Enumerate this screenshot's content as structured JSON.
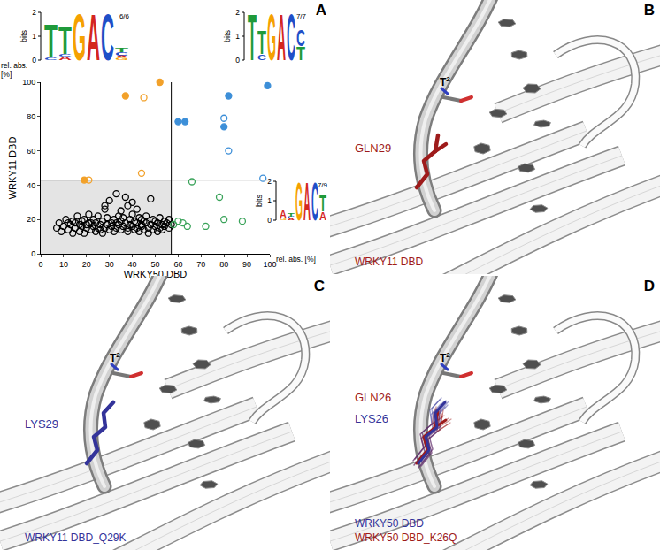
{
  "chart_data": {
    "type": "scatter",
    "x_label": "WRKY50 DBD",
    "y_label": "WRKY11 DBD",
    "x_unit": "rel. abs. [%]",
    "y_unit": "rel. abs. [%]",
    "xlim": [
      0,
      100
    ],
    "ylim": [
      0,
      100
    ],
    "xticks": [
      0,
      10,
      20,
      30,
      40,
      50,
      60,
      70,
      80,
      90,
      100
    ],
    "yticks": [
      0,
      20,
      40,
      60,
      80,
      100
    ],
    "grid": false,
    "cutoffs": {
      "x": 57,
      "y": 43
    },
    "series": [
      {
        "color": "#000000",
        "marker": "circle-open",
        "x": [
          7,
          8,
          9,
          10,
          11,
          12,
          13,
          14,
          14,
          15,
          16,
          17,
          17,
          18,
          19,
          19,
          20,
          21,
          21,
          22,
          23,
          23,
          24,
          24,
          25,
          25,
          26,
          27,
          27,
          28,
          28,
          29,
          29,
          30,
          30,
          31,
          31,
          32,
          32,
          33,
          33,
          34,
          34,
          35,
          35,
          36,
          36,
          37,
          37,
          38,
          38,
          38,
          39,
          39,
          40,
          40,
          41,
          41,
          42,
          42,
          43,
          43,
          44,
          44,
          45,
          45,
          46,
          46,
          47,
          47,
          48,
          48,
          49,
          49,
          50,
          50,
          51,
          51,
          52,
          52,
          53,
          53,
          54,
          54,
          55,
          56,
          56,
          57,
          20,
          26,
          18,
          15,
          35,
          28,
          42,
          12,
          22,
          33,
          44,
          40
        ],
        "y": [
          15,
          18,
          13,
          16,
          20,
          14,
          17,
          12,
          19,
          15,
          22,
          13,
          17,
          16,
          20,
          12,
          15,
          18,
          23,
          14,
          16,
          20,
          13,
          18,
          15,
          22,
          17,
          12,
          19,
          15,
          28,
          17,
          21,
          14,
          31,
          18,
          16,
          20,
          13,
          15,
          35,
          17,
          22,
          19,
          14,
          16,
          21,
          18,
          33,
          15,
          28,
          13,
          20,
          17,
          16,
          23,
          14,
          19,
          18,
          15,
          21,
          13,
          17,
          16,
          19,
          14,
          22,
          18,
          15,
          12,
          32,
          17,
          20,
          14,
          16,
          19,
          18,
          13,
          15,
          21,
          17,
          14,
          19,
          16,
          18,
          15,
          20,
          17,
          17,
          14,
          19,
          18,
          25,
          26,
          26,
          18,
          18,
          18,
          20,
          30
        ]
      },
      {
        "color": "#f2a12a",
        "marker": "circle",
        "x": [
          19,
          37,
          52
        ],
        "y": [
          43,
          92,
          100
        ]
      },
      {
        "color": "#f2a12a",
        "marker": "circle-open",
        "x": [
          21,
          45,
          44
        ],
        "y": [
          43,
          91,
          47
        ]
      },
      {
        "color": "#3d8fd8",
        "marker": "circle",
        "x": [
          60,
          63,
          80,
          82,
          99
        ],
        "y": [
          77,
          77,
          74,
          92,
          98
        ]
      },
      {
        "color": "#3d8fd8",
        "marker": "circle-open",
        "x": [
          80,
          82,
          97
        ],
        "y": [
          79,
          60,
          44
        ]
      },
      {
        "color": "#3aa35a",
        "marker": "circle-open",
        "x": [
          58,
          60,
          62,
          64,
          66,
          72,
          78,
          80,
          88
        ],
        "y": [
          17,
          19,
          18,
          16,
          42,
          16,
          33,
          20,
          19
        ]
      }
    ]
  },
  "logos": [
    {
      "count_label": "6/6",
      "y_label": "bits",
      "ylim": [
        0,
        2
      ],
      "yticks": [
        0,
        1,
        2
      ],
      "columns": [
        [
          {
            "letter": "C",
            "bits": 0.1
          },
          {
            "letter": "T",
            "bits": 1.45
          }
        ],
        [
          {
            "letter": "A",
            "bits": 0.15
          },
          {
            "letter": "C",
            "bits": 0.1
          },
          {
            "letter": "T",
            "bits": 1.2
          }
        ],
        [
          {
            "letter": "G",
            "bits": 2
          }
        ],
        [
          {
            "letter": "A",
            "bits": 2
          }
        ],
        [
          {
            "letter": "C",
            "bits": 2
          }
        ],
        [
          {
            "letter": "G",
            "bits": 0.1
          },
          {
            "letter": "A",
            "bits": 0.1
          },
          {
            "letter": "C",
            "bits": 0.15
          },
          {
            "letter": "T",
            "bits": 0.2
          }
        ]
      ]
    },
    {
      "count_label": "7/7",
      "y_label": "bits",
      "ylim": [
        0,
        2
      ],
      "yticks": [
        0,
        1,
        2
      ],
      "columns": [
        [
          {
            "letter": "T",
            "bits": 2
          }
        ],
        [
          {
            "letter": "C",
            "bits": 0.25
          },
          {
            "letter": "T",
            "bits": 1.0
          }
        ],
        [
          {
            "letter": "G",
            "bits": 2
          }
        ],
        [
          {
            "letter": "A",
            "bits": 2
          }
        ],
        [
          {
            "letter": "C",
            "bits": 2
          }
        ],
        [
          {
            "letter": "T",
            "bits": 0.6
          },
          {
            "letter": "C",
            "bits": 0.7
          }
        ]
      ]
    },
    {
      "count_label": "7/9",
      "y_label": "bits",
      "ylim": [
        0,
        2
      ],
      "yticks": [
        0,
        1,
        2
      ],
      "columns": [
        [
          {
            "letter": "G",
            "bits": 0.1
          },
          {
            "letter": "A",
            "bits": 0.45
          }
        ],
        [
          {
            "letter": "A",
            "bits": 0.1
          },
          {
            "letter": "C",
            "bits": 0.1
          },
          {
            "letter": "T",
            "bits": 0.15
          }
        ],
        [
          {
            "letter": "G",
            "bits": 2
          }
        ],
        [
          {
            "letter": "A",
            "bits": 2
          }
        ],
        [
          {
            "letter": "C",
            "bits": 2
          }
        ],
        [
          {
            "letter": "A",
            "bits": 0.45
          },
          {
            "letter": "T",
            "bits": 0.85
          }
        ]
      ]
    }
  ],
  "figure": {
    "panel_a": {
      "letter": "A"
    },
    "structure_panels": [
      {
        "letter": "B",
        "base": {
          "text": "T",
          "superscript": "2"
        },
        "residues": [
          {
            "label": "GLN29",
            "color": "#9e1b1b"
          }
        ],
        "proteins": [
          {
            "label": "WRKY11 DBD",
            "color": "#9e1b1b"
          }
        ]
      },
      {
        "letter": "C",
        "base": {
          "text": "T",
          "superscript": "2"
        },
        "residues": [
          {
            "label": "LYS29",
            "color": "#33339a"
          }
        ],
        "proteins": [
          {
            "label": "WRKY11 DBD_Q29K",
            "color": "#33339a"
          }
        ]
      },
      {
        "letter": "D",
        "base": {
          "text": "T",
          "superscript": "2"
        },
        "residues": [
          {
            "label": "GLN26",
            "color": "#9e1b1b"
          },
          {
            "label": "LYS26",
            "color": "#33339a"
          }
        ],
        "proteins": [
          {
            "label": "WRKY50 DBD",
            "color": "#33339a"
          },
          {
            "label": "WRKY50 DBD_K26Q",
            "color": "#9e1b1b"
          }
        ]
      }
    ]
  }
}
